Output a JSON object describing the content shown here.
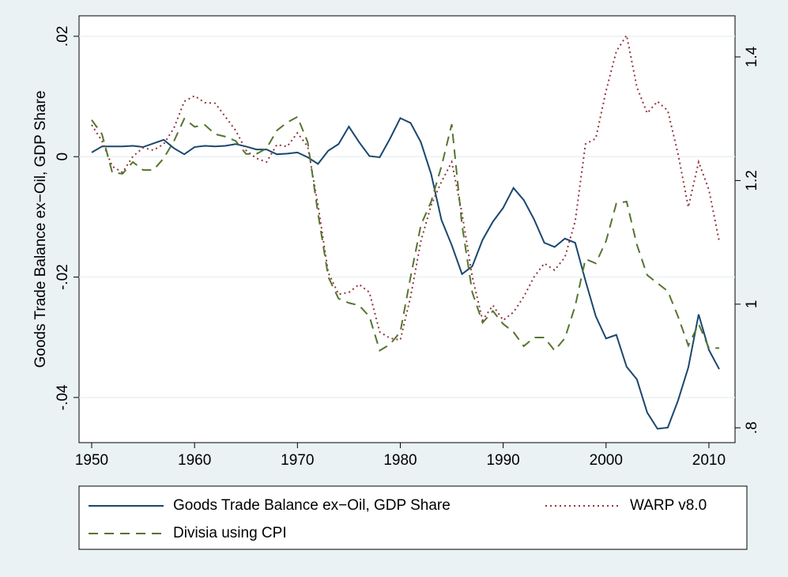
{
  "chart_data": {
    "type": "line",
    "y_label": "Goods Trade Balance ex−Oil, GDP Share",
    "x": [
      1950,
      1951,
      1952,
      1953,
      1954,
      1955,
      1956,
      1957,
      1958,
      1959,
      1960,
      1961,
      1962,
      1963,
      1964,
      1965,
      1966,
      1967,
      1968,
      1969,
      1970,
      1971,
      1972,
      1973,
      1974,
      1975,
      1976,
      1977,
      1978,
      1979,
      1980,
      1981,
      1982,
      1983,
      1984,
      1985,
      1986,
      1987,
      1988,
      1989,
      1990,
      1991,
      1992,
      1993,
      1994,
      1995,
      1996,
      1997,
      1998,
      1999,
      2000,
      2001,
      2002,
      2003,
      2004,
      2005,
      2006,
      2007,
      2008,
      2009,
      2010,
      2011
    ],
    "series": [
      {
        "name": "Goods Trade Balance ex−Oil, GDP Share",
        "color": "#1a476f",
        "dash": "solid",
        "values": [
          0.0007,
          0.0017,
          0.0017,
          0.0017,
          0.0018,
          0.0016,
          0.0022,
          0.0028,
          0.0014,
          0.0004,
          0.0016,
          0.0018,
          0.0017,
          0.0018,
          0.0021,
          0.0017,
          0.0012,
          0.0012,
          0.0004,
          0.0005,
          0.0007,
          -0.0001,
          -0.0012,
          0.001,
          0.0021,
          0.005,
          0.0024,
          0.0001,
          -0.0001,
          0.003,
          0.0064,
          0.0056,
          0.0024,
          -0.0029,
          -0.0105,
          -0.0147,
          -0.0195,
          -0.0182,
          -0.0138,
          -0.0108,
          -0.0085,
          -0.0052,
          -0.0072,
          -0.0104,
          -0.0143,
          -0.015,
          -0.0136,
          -0.0143,
          -0.0206,
          -0.0265,
          -0.0302,
          -0.0296,
          -0.0349,
          -0.037,
          -0.0425,
          -0.0452,
          -0.045,
          -0.0405,
          -0.035,
          -0.0262,
          -0.0321,
          -0.0353
        ]
      },
      {
        "name": "WARP v8.0",
        "color": "#90353b",
        "dash": "dot",
        "axis": "y2",
        "values": [
          1.29,
          1.264,
          1.223,
          1.213,
          1.239,
          1.253,
          1.249,
          1.259,
          1.285,
          1.328,
          1.337,
          1.326,
          1.325,
          1.303,
          1.281,
          1.249,
          1.236,
          1.23,
          1.258,
          1.255,
          1.277,
          1.255,
          1.16,
          1.051,
          1.016,
          1.019,
          1.032,
          1.019,
          0.955,
          0.945,
          0.942,
          1.012,
          1.102,
          1.16,
          1.198,
          1.23,
          1.147,
          1.044,
          0.974,
          0.998,
          0.974,
          0.987,
          1.012,
          1.044,
          1.066,
          1.055,
          1.076,
          1.134,
          1.259,
          1.268,
          1.345,
          1.409,
          1.435,
          1.351,
          1.309,
          1.328,
          1.313,
          1.243,
          1.157,
          1.23,
          1.185,
          1.102
        ]
      },
      {
        "name": "Divisia using CPI",
        "color": "#55752f",
        "dash": "dash",
        "axis": "y2",
        "values": [
          1.298,
          1.275,
          1.213,
          1.211,
          1.23,
          1.217,
          1.217,
          1.236,
          1.264,
          1.3,
          1.287,
          1.29,
          1.275,
          1.271,
          1.264,
          1.243,
          1.243,
          1.252,
          1.281,
          1.294,
          1.303,
          1.262,
          1.147,
          1.044,
          1.009,
          1.002,
          0.998,
          0.98,
          0.925,
          0.935,
          0.955,
          1.044,
          1.128,
          1.166,
          1.223,
          1.291,
          1.128,
          1.019,
          0.97,
          0.989,
          0.968,
          0.955,
          0.932,
          0.946,
          0.946,
          0.925,
          0.945,
          0.997,
          1.073,
          1.066,
          1.102,
          1.163,
          1.166,
          1.096,
          1.047,
          1.034,
          1.021,
          0.98,
          0.933,
          0.968,
          0.929,
          0.929
        ]
      }
    ],
    "xlim": [
      1948.77,
      2012.54
    ],
    "xticks": [
      1950,
      1960,
      1970,
      1980,
      1990,
      2000,
      2010
    ],
    "ylim": [
      -0.0475,
      0.0234
    ],
    "yticks": [
      {
        "value": -0.04,
        "label": "-.04"
      },
      {
        "value": -0.02,
        "label": "-.02"
      },
      0,
      {
        "value": 0.02,
        "label": ".02"
      }
    ],
    "y2lim": [
      0.776,
      1.4665
    ],
    "y2ticks": [
      {
        "value": 0.8,
        "label": ".8"
      },
      1,
      {
        "value": 1.2,
        "label": "1.2"
      },
      {
        "value": 1.4,
        "label": "1.4"
      }
    ],
    "grid": true,
    "legend_position": "bottom"
  }
}
